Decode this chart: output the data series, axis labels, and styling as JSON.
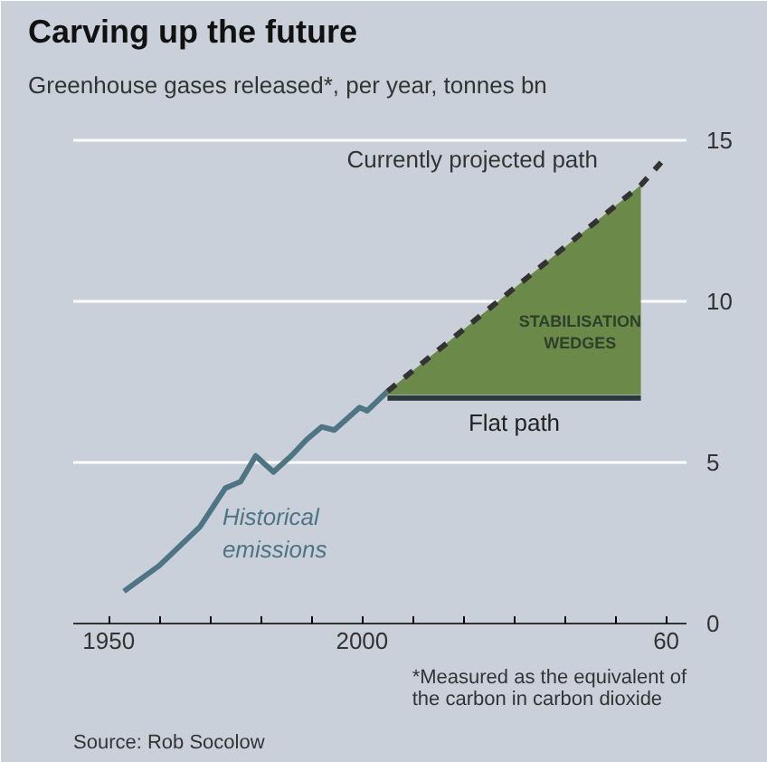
{
  "chart_data": {
    "type": "line",
    "title": "Carving up the future",
    "subtitle": "Greenhouse gases released*, per year, tonnes bn",
    "series": [
      {
        "name": "Historical\nemissions",
        "color": "#4f7484",
        "x": [
          1953,
          1960,
          1968,
          1973,
          1976,
          1979,
          1982.5,
          1986,
          1989,
          1992,
          1994.5,
          1999.5,
          2001,
          2005
        ],
        "values": [
          1.0,
          1.8,
          3.0,
          4.2,
          4.4,
          5.2,
          4.7,
          5.2,
          5.7,
          6.1,
          6.0,
          6.7,
          6.6,
          7.2
        ]
      },
      {
        "name": "Flat path",
        "color": "#2a3a3a",
        "x": [
          2005,
          2055
        ],
        "values": [
          7.0,
          7.0
        ]
      },
      {
        "name": "Currently projected path",
        "color": "#333333",
        "line_style": "dashed",
        "x": [
          2005,
          2055,
          2059
        ],
        "values": [
          7.2,
          13.6,
          14.3
        ],
        "lower": [
          7.1,
          7.1,
          null
        ],
        "upper": [
          7.2,
          13.6,
          null
        ]
      }
    ],
    "xlim": [
      1943,
      2064
    ],
    "xticks": [
      1950,
      {
        "value": 1960,
        "label": null
      },
      {
        "value": 1970,
        "label": null
      },
      {
        "value": 1980,
        "label": null
      },
      {
        "value": 1990,
        "label": null
      },
      2000,
      {
        "value": 2010,
        "label": null
      },
      {
        "value": 2020,
        "label": null
      },
      {
        "value": 2030,
        "label": null
      },
      {
        "value": 2040,
        "label": null
      },
      {
        "value": 2050,
        "label": null
      },
      {
        "value": 2060,
        "label": "60"
      }
    ],
    "ylim": [
      0,
      16
    ],
    "yticks": [
      0,
      5,
      10,
      15
    ],
    "grid": "y",
    "annotations": [
      "STABILISATION\nWEDGES",
      "*Measured as the equivalent of\nthe carbon in carbon dioxide",
      "Source: Rob Socolow"
    ]
  }
}
